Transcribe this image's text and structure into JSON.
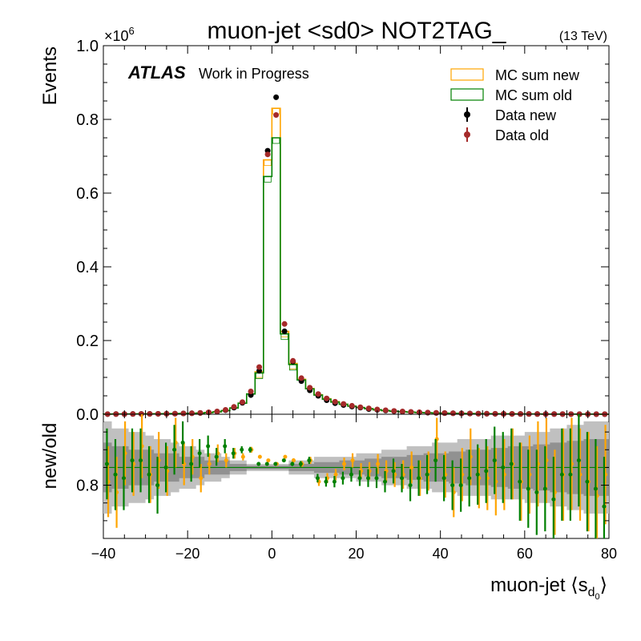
{
  "chart_data": {
    "type": "histogram-with-ratio",
    "title": "muon-jet <sd0> NOT2TAG_",
    "energy_label": "(13 TeV)",
    "atlas_label": "ATLAS",
    "atlas_sublabel": "Work in Progress",
    "xlabel_prefix": "muon-jet",
    "xlabel_lang": "⟨s",
    "xlabel_sub": "d",
    "xlabel_subsub": "0",
    "xlabel_rang": "⟩",
    "ylabel": "Events",
    "ylabel_ratio": "new/old",
    "y_multiplier": "×10",
    "y_multiplier_exp": "6",
    "xlim": [
      -40,
      80
    ],
    "ylim": [
      0,
      1.0
    ],
    "ratio_ylim": [
      0.65,
      1.0
    ],
    "x_ticks": [
      -40,
      -20,
      0,
      20,
      40,
      60,
      80
    ],
    "x_tick_labels": [
      "−40",
      "−20",
      "0",
      "20",
      "40",
      "60",
      "80"
    ],
    "y_ticks": [
      0.0,
      0.2,
      0.4,
      0.6,
      0.8,
      1.0
    ],
    "y_tick_labels": [
      "0.0",
      "0.2",
      "0.4",
      "0.6",
      "0.8",
      "1.0"
    ],
    "ratio_y_ticks": [
      0.8
    ],
    "ratio_y_tick_labels": [
      "0.8"
    ],
    "ratio_reference": 0.85,
    "bin_width": 2,
    "legend": {
      "position": "top-right",
      "entries": [
        {
          "label": "MC sum new",
          "style": "box",
          "color": "#ffa500"
        },
        {
          "label": "MC sum old",
          "style": "box",
          "color": "#008000"
        },
        {
          "label": "Data new",
          "style": "marker",
          "color": "#000000"
        },
        {
          "label": "Data old",
          "style": "marker",
          "color": "#a52a2a"
        }
      ]
    },
    "bin_centers": [
      -39,
      -37,
      -35,
      -33,
      -31,
      -29,
      -27,
      -25,
      -23,
      -21,
      -19,
      -17,
      -15,
      -13,
      -11,
      -9,
      -7,
      -5,
      -3,
      -1,
      1,
      3,
      5,
      7,
      9,
      11,
      13,
      15,
      17,
      19,
      21,
      23,
      25,
      27,
      29,
      31,
      33,
      35,
      37,
      39,
      41,
      43,
      45,
      47,
      49,
      51,
      53,
      55,
      57,
      59,
      61,
      63,
      65,
      67,
      69,
      71,
      73,
      75,
      77,
      79
    ],
    "series": [
      {
        "name": "MC sum new",
        "color": "#ffa500",
        "values": [
          0.0005,
          0.0006,
          0.0007,
          0.0008,
          0.0009,
          0.001,
          0.0012,
          0.0014,
          0.0017,
          0.002,
          0.0025,
          0.0032,
          0.0045,
          0.0065,
          0.01,
          0.017,
          0.03,
          0.055,
          0.115,
          0.69,
          0.83,
          0.225,
          0.138,
          0.095,
          0.07,
          0.053,
          0.042,
          0.034,
          0.027,
          0.022,
          0.018,
          0.015,
          0.012,
          0.01,
          0.008,
          0.0068,
          0.0057,
          0.0048,
          0.004,
          0.0034,
          0.0029,
          0.0025,
          0.0021,
          0.0018,
          0.0016,
          0.0014,
          0.0012,
          0.001,
          0.0009,
          0.0008,
          0.0007,
          0.0006,
          0.0005,
          0.0005,
          0.0004,
          0.0004,
          0.0003,
          0.0003,
          0.0003,
          0.0002
        ]
      },
      {
        "name": "MC sum old",
        "color": "#008000",
        "values": [
          0.0005,
          0.0006,
          0.0007,
          0.0008,
          0.0009,
          0.001,
          0.0012,
          0.0014,
          0.0017,
          0.002,
          0.0025,
          0.0032,
          0.0045,
          0.0065,
          0.01,
          0.017,
          0.03,
          0.055,
          0.112,
          0.645,
          0.75,
          0.218,
          0.135,
          0.093,
          0.069,
          0.052,
          0.041,
          0.033,
          0.027,
          0.022,
          0.018,
          0.015,
          0.012,
          0.01,
          0.008,
          0.0068,
          0.0057,
          0.0048,
          0.004,
          0.0034,
          0.0029,
          0.0025,
          0.0021,
          0.0018,
          0.0016,
          0.0014,
          0.0012,
          0.001,
          0.0009,
          0.0008,
          0.0007,
          0.0006,
          0.0005,
          0.0005,
          0.0004,
          0.0004,
          0.0003,
          0.0003,
          0.0003,
          0.0002
        ]
      },
      {
        "name": "Data new",
        "color": "#000000",
        "values": [
          0.0004,
          0.0005,
          0.0006,
          0.0007,
          0.0009,
          0.001,
          0.0012,
          0.0014,
          0.0017,
          0.0021,
          0.0026,
          0.0035,
          0.005,
          0.007,
          0.011,
          0.018,
          0.031,
          0.052,
          0.118,
          0.715,
          0.86,
          0.225,
          0.143,
          0.09,
          0.065,
          0.05,
          0.038,
          0.03,
          0.025,
          0.021,
          0.018,
          0.014,
          0.012,
          0.01,
          0.0085,
          0.007,
          0.006,
          0.005,
          0.0042,
          0.0035,
          0.003,
          0.0026,
          0.0022,
          0.0019,
          0.0016,
          0.0014,
          0.0012,
          0.001,
          0.0009,
          0.0008,
          0.0007,
          0.0006,
          0.0005,
          0.0005,
          0.0004,
          0.0004,
          0.0003,
          0.0003,
          0.0003,
          0.0002
        ]
      },
      {
        "name": "Data old",
        "color": "#a52a2a",
        "values": [
          0.0004,
          0.0005,
          0.0006,
          0.0007,
          0.0009,
          0.001,
          0.0012,
          0.0014,
          0.0017,
          0.0021,
          0.0026,
          0.0035,
          0.0052,
          0.0075,
          0.012,
          0.02,
          0.033,
          0.062,
          0.128,
          0.705,
          0.812,
          0.245,
          0.145,
          0.098,
          0.072,
          0.055,
          0.043,
          0.034,
          0.028,
          0.023,
          0.019,
          0.016,
          0.013,
          0.011,
          0.009,
          0.0075,
          0.0063,
          0.0053,
          0.0045,
          0.0038,
          0.0032,
          0.0027,
          0.0023,
          0.002,
          0.0017,
          0.0015,
          0.0013,
          0.0011,
          0.001,
          0.0009,
          0.0008,
          0.0007,
          0.0006,
          0.0005,
          0.0005,
          0.0004,
          0.0004,
          0.0003,
          0.0003,
          0.0003
        ]
      }
    ],
    "ratio_band_outer": [
      0.72,
      0.74,
      0.74,
      0.75,
      0.75,
      0.76,
      0.77,
      0.77,
      0.78,
      0.79,
      0.79,
      0.8,
      0.81,
      0.81,
      0.82,
      0.83,
      0.83,
      0.84,
      0.84,
      0.84,
      0.84,
      0.84,
      0.83,
      0.83,
      0.83,
      0.82,
      0.82,
      0.82,
      0.82,
      0.82,
      0.81,
      0.81,
      0.81,
      0.8,
      0.8,
      0.8,
      0.79,
      0.79,
      0.79,
      0.78,
      0.78,
      0.78,
      0.77,
      0.77,
      0.77,
      0.77,
      0.76,
      0.76,
      0.76,
      0.76,
      0.75,
      0.75,
      0.75,
      0.74,
      0.74,
      0.73,
      0.73,
      0.72,
      0.72,
      0.72
    ],
    "ratio_band_outer_hi": [
      0.98,
      0.96,
      0.96,
      0.95,
      0.95,
      0.94,
      0.93,
      0.93,
      0.92,
      0.91,
      0.91,
      0.9,
      0.89,
      0.89,
      0.88,
      0.87,
      0.87,
      0.86,
      0.86,
      0.86,
      0.86,
      0.86,
      0.87,
      0.87,
      0.87,
      0.88,
      0.88,
      0.88,
      0.88,
      0.88,
      0.89,
      0.89,
      0.89,
      0.9,
      0.9,
      0.9,
      0.91,
      0.91,
      0.91,
      0.92,
      0.92,
      0.92,
      0.93,
      0.93,
      0.93,
      0.93,
      0.94,
      0.94,
      0.94,
      0.94,
      0.95,
      0.95,
      0.95,
      0.96,
      0.96,
      0.97,
      0.97,
      0.98,
      0.98,
      0.98
    ],
    "ratio_band_inner": [
      0.78,
      0.79,
      0.79,
      0.8,
      0.8,
      0.8,
      0.81,
      0.81,
      0.81,
      0.82,
      0.82,
      0.82,
      0.83,
      0.83,
      0.83,
      0.84,
      0.84,
      0.845,
      0.845,
      0.845,
      0.845,
      0.845,
      0.84,
      0.84,
      0.84,
      0.835,
      0.835,
      0.835,
      0.83,
      0.83,
      0.83,
      0.825,
      0.825,
      0.82,
      0.82,
      0.82,
      0.815,
      0.815,
      0.81,
      0.81,
      0.81,
      0.805,
      0.805,
      0.8,
      0.8,
      0.8,
      0.795,
      0.795,
      0.79,
      0.79,
      0.79,
      0.785,
      0.785,
      0.78,
      0.78,
      0.775,
      0.775,
      0.77,
      0.77,
      0.77
    ],
    "ratio_band_inner_hi": [
      0.92,
      0.91,
      0.91,
      0.9,
      0.9,
      0.9,
      0.89,
      0.89,
      0.89,
      0.88,
      0.88,
      0.88,
      0.87,
      0.87,
      0.87,
      0.86,
      0.86,
      0.855,
      0.855,
      0.855,
      0.855,
      0.855,
      0.86,
      0.86,
      0.86,
      0.865,
      0.865,
      0.865,
      0.87,
      0.87,
      0.87,
      0.875,
      0.875,
      0.88,
      0.88,
      0.88,
      0.885,
      0.885,
      0.89,
      0.89,
      0.89,
      0.895,
      0.895,
      0.9,
      0.9,
      0.9,
      0.905,
      0.905,
      0.91,
      0.91,
      0.91,
      0.915,
      0.915,
      0.92,
      0.92,
      0.925,
      0.925,
      0.93,
      0.93,
      0.93
    ],
    "ratio_points_orange": {
      "color": "#ffa500",
      "values": [
        0.81,
        0.78,
        0.89,
        0.86,
        0.91,
        0.83,
        0.87,
        0.84,
        0.92,
        0.86,
        0.88,
        0.82,
        0.86,
        0.89,
        0.87,
        0.89,
        0.88,
        0.9,
        0.88,
        0.87,
        0.86,
        0.88,
        0.87,
        0.86,
        0.87,
        0.81,
        0.82,
        0.83,
        0.86,
        0.87,
        0.84,
        0.84,
        0.86,
        0.84,
        0.83,
        0.83,
        0.85,
        0.82,
        0.84,
        0.93,
        0.83,
        0.78,
        0.83,
        0.88,
        0.82,
        0.82,
        0.81,
        0.83,
        0.86,
        0.81,
        0.83,
        0.86,
        0.87,
        0.78,
        0.83,
        0.86,
        0.83,
        0.81,
        0.77,
        0.83
      ],
      "errors": [
        0.1,
        0.1,
        0.09,
        0.09,
        0.09,
        0.08,
        0.08,
        0.07,
        0.07,
        0.06,
        0.05,
        0.04,
        0.03,
        0.025,
        0.02,
        0.015,
        0.01,
        0.008,
        0.005,
        0.003,
        0.003,
        0.004,
        0.006,
        0.008,
        0.01,
        0.012,
        0.014,
        0.016,
        0.018,
        0.02,
        0.022,
        0.025,
        0.028,
        0.03,
        0.035,
        0.04,
        0.045,
        0.05,
        0.055,
        0.06,
        0.065,
        0.07,
        0.075,
        0.08,
        0.085,
        0.09,
        0.095,
        0.1,
        0.1,
        0.11,
        0.11,
        0.12,
        0.12,
        0.12,
        0.13,
        0.13,
        0.13,
        0.14,
        0.14,
        0.14
      ]
    },
    "ratio_points_green": {
      "color": "#008000",
      "values": [
        0.86,
        0.83,
        0.82,
        0.87,
        0.87,
        0.83,
        0.8,
        0.85,
        0.9,
        0.92,
        0.86,
        0.89,
        0.91,
        0.88,
        0.91,
        0.89,
        0.9,
        0.9,
        0.86,
        0.86,
        0.86,
        0.87,
        0.86,
        0.86,
        0.87,
        0.82,
        0.81,
        0.81,
        0.82,
        0.83,
        0.82,
        0.82,
        0.82,
        0.81,
        0.84,
        0.82,
        0.8,
        0.82,
        0.83,
        0.87,
        0.82,
        0.8,
        0.8,
        0.82,
        0.83,
        0.84,
        0.87,
        0.85,
        0.86,
        0.81,
        0.79,
        0.78,
        0.79,
        0.76,
        0.83,
        0.83,
        0.87,
        0.81,
        0.79,
        0.74
      ],
      "errors": [
        0.1,
        0.1,
        0.09,
        0.09,
        0.09,
        0.08,
        0.08,
        0.07,
        0.07,
        0.06,
        0.05,
        0.04,
        0.03,
        0.025,
        0.02,
        0.015,
        0.01,
        0.008,
        0.005,
        0.003,
        0.003,
        0.004,
        0.006,
        0.008,
        0.01,
        0.012,
        0.014,
        0.016,
        0.018,
        0.02,
        0.022,
        0.025,
        0.028,
        0.03,
        0.035,
        0.04,
        0.045,
        0.05,
        0.055,
        0.06,
        0.065,
        0.07,
        0.075,
        0.08,
        0.085,
        0.09,
        0.095,
        0.1,
        0.1,
        0.11,
        0.11,
        0.12,
        0.12,
        0.12,
        0.13,
        0.13,
        0.13,
        0.14,
        0.14,
        0.14
      ]
    }
  }
}
